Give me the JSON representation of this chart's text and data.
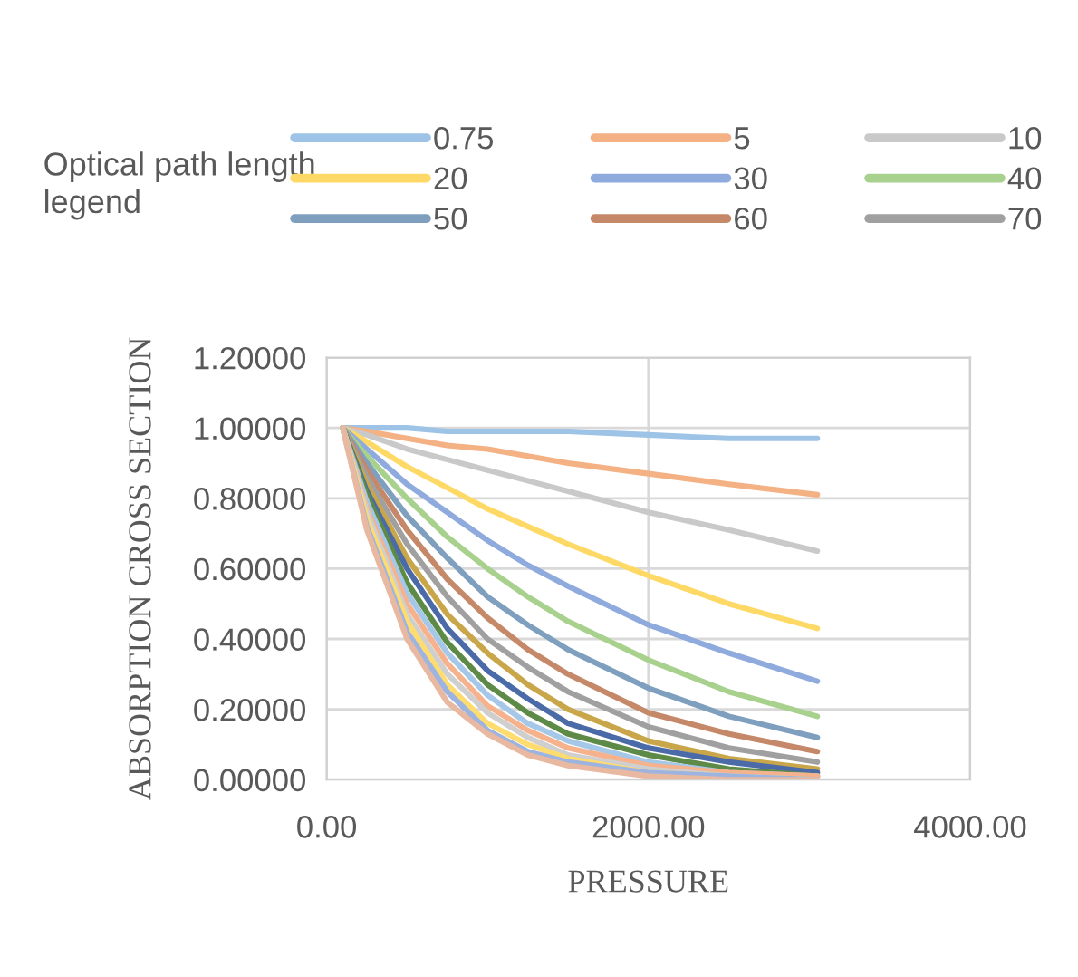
{
  "chart_data": {
    "type": "line",
    "xlabel": "PRESSURE",
    "ylabel": "ABSORPTION CROSS SECTION",
    "legend_title": "Optical path length legend",
    "legend": "top",
    "grid": true,
    "marker": "none",
    "line_style": "solid",
    "x": [
      100,
      250,
      500,
      750,
      1000,
      1250,
      1500,
      2000,
      2500,
      3050
    ],
    "xlim": [
      0,
      4000
    ],
    "xticks": [
      {
        "value": 0,
        "label": "0.00"
      },
      {
        "value": 2000,
        "label": "2000.00"
      },
      {
        "value": 4000,
        "label": "4000.00"
      }
    ],
    "ylim": [
      0,
      1.2
    ],
    "yticks": [
      {
        "value": 0,
        "label": "0.00000"
      },
      {
        "value": 0.2,
        "label": "0.20000"
      },
      {
        "value": 0.4,
        "label": "0.40000"
      },
      {
        "value": 0.6,
        "label": "0.60000"
      },
      {
        "value": 0.8,
        "label": "0.80000"
      },
      {
        "value": 1.0,
        "label": "1.00000"
      },
      {
        "value": 1.2,
        "label": "1.20000"
      }
    ],
    "series": [
      {
        "name": "0.75",
        "color": "#9dc3e6",
        "values": [
          1.0,
          1.0,
          1.0,
          0.99,
          0.99,
          0.99,
          0.99,
          0.98,
          0.97,
          0.97
        ]
      },
      {
        "name": "5",
        "color": "#f4b183",
        "values": [
          1.0,
          0.99,
          0.97,
          0.95,
          0.94,
          0.92,
          0.9,
          0.87,
          0.84,
          0.81
        ]
      },
      {
        "name": "10",
        "color": "#c9c9c9",
        "values": [
          1.0,
          0.98,
          0.94,
          0.91,
          0.88,
          0.85,
          0.82,
          0.76,
          0.71,
          0.65
        ]
      },
      {
        "name": "20",
        "color": "#ffd966",
        "values": [
          1.0,
          0.96,
          0.89,
          0.83,
          0.77,
          0.72,
          0.67,
          0.58,
          0.5,
          0.43
        ]
      },
      {
        "name": "30",
        "color": "#8faadc",
        "values": [
          1.0,
          0.94,
          0.84,
          0.76,
          0.68,
          0.61,
          0.55,
          0.44,
          0.36,
          0.28
        ]
      },
      {
        "name": "40",
        "color": "#a9d18e",
        "values": [
          1.0,
          0.92,
          0.8,
          0.69,
          0.6,
          0.52,
          0.45,
          0.34,
          0.25,
          0.18
        ]
      },
      {
        "name": "50",
        "color": "#7f9fbf",
        "values": [
          1.0,
          0.9,
          0.75,
          0.63,
          0.52,
          0.44,
          0.37,
          0.26,
          0.18,
          0.12
        ]
      },
      {
        "name": "60",
        "color": "#c5896a",
        "values": [
          1.0,
          0.88,
          0.71,
          0.57,
          0.46,
          0.37,
          0.3,
          0.19,
          0.13,
          0.08
        ]
      },
      {
        "name": "70",
        "color": "#a0a0a0",
        "values": [
          1.0,
          0.86,
          0.67,
          0.52,
          0.4,
          0.32,
          0.25,
          0.15,
          0.09,
          0.05
        ]
      },
      {
        "color": "#c9a64a",
        "values": [
          1.0,
          0.84,
          0.63,
          0.47,
          0.36,
          0.27,
          0.2,
          0.11,
          0.06,
          0.03
        ]
      },
      {
        "color": "#4a6aa8",
        "values": [
          1.0,
          0.82,
          0.6,
          0.43,
          0.31,
          0.23,
          0.16,
          0.09,
          0.05,
          0.02
        ]
      },
      {
        "color": "#5d8a46",
        "values": [
          1.0,
          0.81,
          0.56,
          0.39,
          0.27,
          0.19,
          0.13,
          0.07,
          0.03,
          0.01
        ]
      },
      {
        "color": "#a6c8e8",
        "values": [
          1.0,
          0.79,
          0.53,
          0.36,
          0.24,
          0.16,
          0.11,
          0.05,
          0.02,
          0.01
        ]
      },
      {
        "color": "#f6b28c",
        "values": [
          1.0,
          0.77,
          0.5,
          0.33,
          0.21,
          0.14,
          0.09,
          0.04,
          0.02,
          0.01
        ]
      },
      {
        "color": "#cfcfcf",
        "values": [
          1.0,
          0.76,
          0.47,
          0.3,
          0.19,
          0.12,
          0.07,
          0.03,
          0.01,
          0.0
        ]
      },
      {
        "color": "#ffdc70",
        "values": [
          1.0,
          0.74,
          0.45,
          0.27,
          0.16,
          0.1,
          0.06,
          0.02,
          0.01,
          0.0
        ]
      },
      {
        "color": "#9db4e0",
        "values": [
          1.0,
          0.72,
          0.42,
          0.25,
          0.14,
          0.08,
          0.05,
          0.02,
          0.01,
          0.0
        ]
      },
      {
        "color": "#e8b9a0",
        "values": [
          1.0,
          0.71,
          0.4,
          0.22,
          0.13,
          0.07,
          0.04,
          0.01,
          0.0,
          0.0
        ]
      }
    ]
  }
}
